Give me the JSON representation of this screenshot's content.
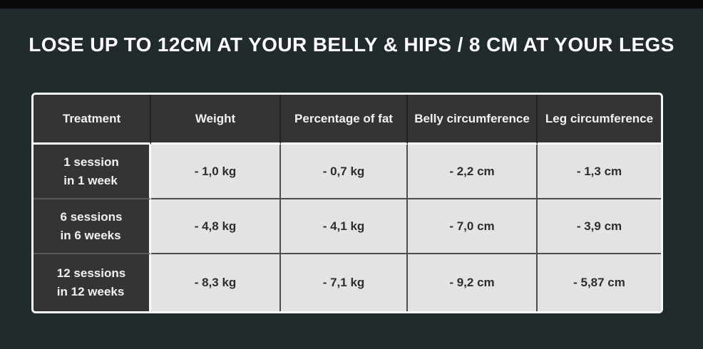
{
  "page": {
    "title": "LOSE UP TO 12CM AT YOUR BELLY & HIPS / 8 CM AT YOUR LEGS"
  },
  "colors": {
    "page_background": "#212a2d",
    "top_strip": "#0a0a0a",
    "dark_cell_background": "#343434",
    "light_cell_background": "#e4e3e2",
    "table_border": "#f8f8f8",
    "header_text": "#f2f2f2",
    "value_text": "#2d2d2d"
  },
  "chart_data": {
    "type": "table",
    "title": "LOSE UP TO 12CM AT YOUR BELLY & HIPS / 8 CM AT YOUR LEGS",
    "columns": [
      "Treatment",
      "Weight",
      "Percentage of fat",
      "Belly circumference",
      "Leg circumference"
    ],
    "rows": [
      {
        "treatment": "1 session\nin 1 week",
        "values": [
          "- 1,0 kg",
          "- 0,7 kg",
          "- 2,2 cm",
          "- 1,3 cm"
        ]
      },
      {
        "treatment": "6 sessions\nin 6 weeks",
        "values": [
          "- 4,8 kg",
          "- 4,1 kg",
          "- 7,0 cm",
          "- 3,9 cm"
        ]
      },
      {
        "treatment": "12 sessions\nin 12 weeks",
        "values": [
          "- 8,3 kg",
          "- 7,1 kg",
          "- 9,2 cm",
          "- 5,87 cm"
        ]
      }
    ],
    "layout": {
      "header_style": "dark cells, white text",
      "first_column_style": "dark cells, white text",
      "value_cells_style": "light gray cells, dark text",
      "grid": "white outer border and white separators after header row and first column; gray inner separators"
    }
  }
}
